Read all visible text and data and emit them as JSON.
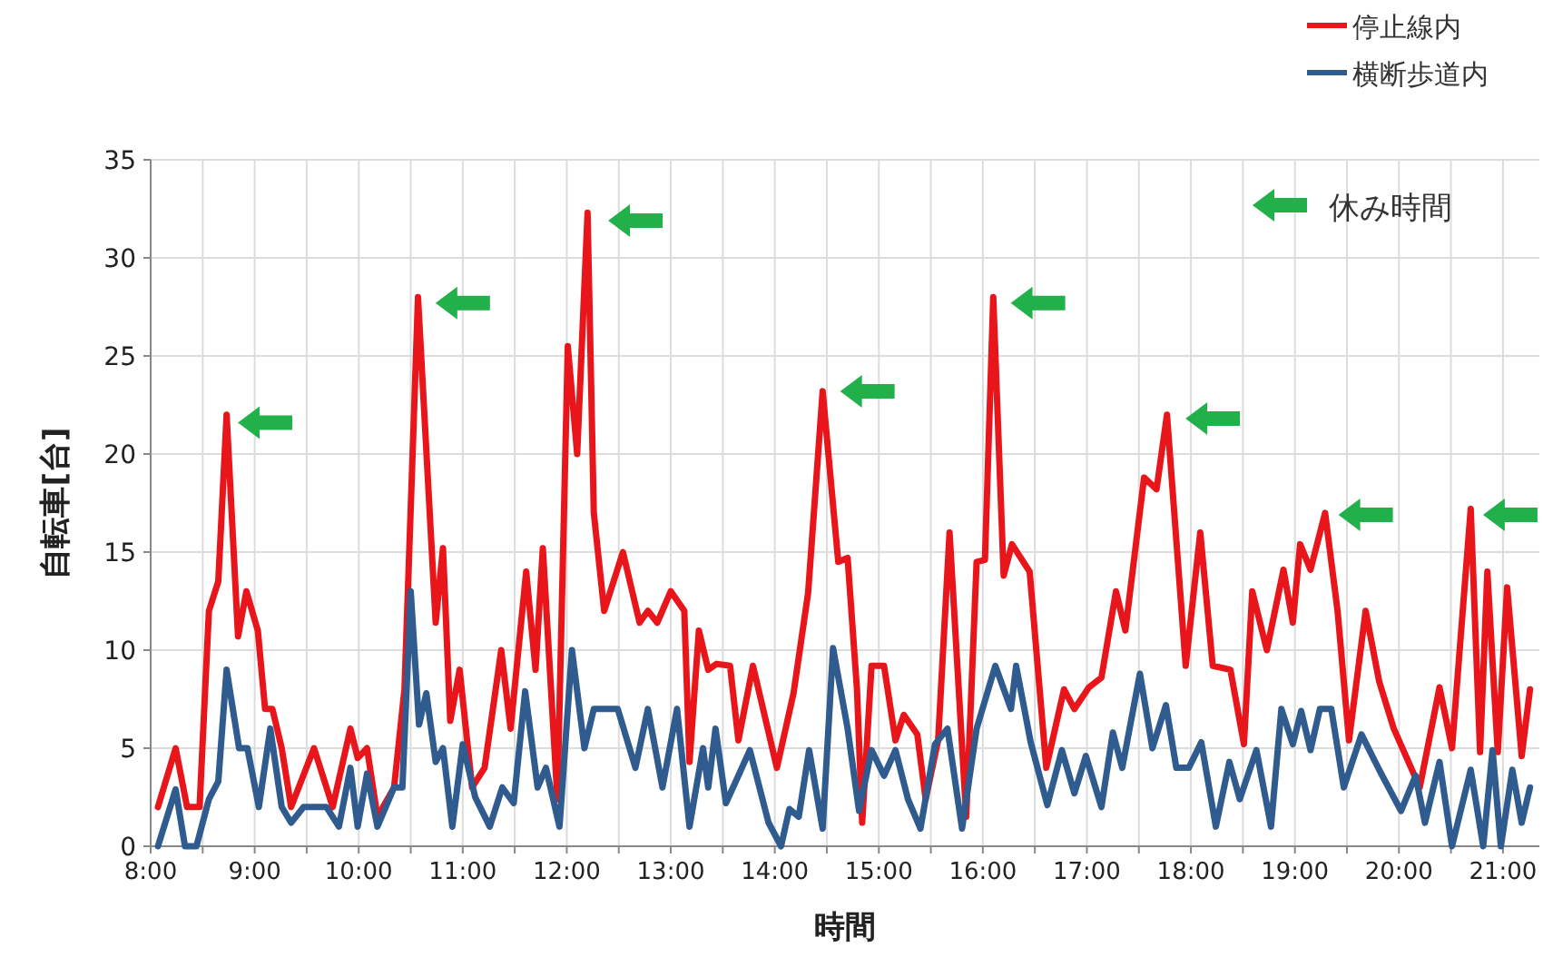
{
  "chart_data": {
    "type": "line",
    "xlabel": "時間",
    "ylabel": "自転車[台]",
    "xlim": [
      8,
      21.35
    ],
    "ylim": [
      0,
      35
    ],
    "xticks": [
      {
        "value": 8,
        "label": "8:00"
      },
      {
        "value": 8.5,
        "label": null
      },
      {
        "value": 9,
        "label": "9:00"
      },
      {
        "value": 9.5,
        "label": null
      },
      {
        "value": 10,
        "label": "10:00"
      },
      {
        "value": 10.5,
        "label": null
      },
      {
        "value": 11,
        "label": "11:00"
      },
      {
        "value": 11.5,
        "label": null
      },
      {
        "value": 12,
        "label": "12:00"
      },
      {
        "value": 12.5,
        "label": null
      },
      {
        "value": 13,
        "label": "13:00"
      },
      {
        "value": 13.5,
        "label": null
      },
      {
        "value": 14,
        "label": "14:00"
      },
      {
        "value": 14.5,
        "label": null
      },
      {
        "value": 15,
        "label": "15:00"
      },
      {
        "value": 15.5,
        "label": null
      },
      {
        "value": 16,
        "label": "16:00"
      },
      {
        "value": 16.5,
        "label": null
      },
      {
        "value": 17,
        "label": "17:00"
      },
      {
        "value": 17.5,
        "label": null
      },
      {
        "value": 18,
        "label": "18:00"
      },
      {
        "value": 18.5,
        "label": null
      },
      {
        "value": 19,
        "label": "19:00"
      },
      {
        "value": 19.5,
        "label": null
      },
      {
        "value": 20,
        "label": "20:00"
      },
      {
        "value": 20.5,
        "label": null
      },
      {
        "value": 21,
        "label": "21:00"
      }
    ],
    "yticks": [
      0,
      5,
      10,
      15,
      20,
      25,
      30,
      35
    ],
    "grid": true,
    "legend": "top right",
    "line_style": "solid",
    "series": [
      {
        "name": "停止線内",
        "color": "#e8161b",
        "x": [
          8.07,
          8.24,
          8.35,
          8.47,
          8.56,
          8.65,
          8.73,
          8.84,
          8.92,
          9.03,
          9.1,
          9.17,
          9.26,
          9.35,
          9.57,
          9.75,
          9.92,
          9.99,
          10.08,
          10.18,
          10.34,
          10.44,
          10.57,
          10.74,
          10.81,
          10.88,
          10.97,
          11.09,
          11.21,
          11.37,
          11.46,
          11.61,
          11.7,
          11.77,
          11.91,
          12.01,
          12.1,
          12.2,
          12.26,
          12.36,
          12.54,
          12.7,
          12.78,
          12.87,
          13.0,
          13.13,
          13.18,
          13.27,
          13.36,
          13.44,
          13.57,
          13.65,
          13.79,
          14.02,
          14.18,
          14.32,
          14.46,
          14.61,
          14.7,
          14.79,
          14.84,
          14.93,
          15.05,
          15.16,
          15.24,
          15.37,
          15.45,
          15.57,
          15.68,
          15.84,
          15.94,
          16.02,
          16.1,
          16.2,
          16.28,
          16.45,
          16.61,
          16.78,
          16.88,
          17.02,
          17.14,
          17.28,
          17.37,
          17.55,
          17.67,
          17.77,
          17.95,
          18.09,
          18.21,
          18.38,
          18.51,
          18.59,
          18.73,
          18.89,
          18.98,
          19.05,
          19.15,
          19.29,
          19.41,
          19.52,
          19.68,
          19.81,
          19.95,
          20.2,
          20.39,
          20.51,
          20.69,
          20.78,
          20.85,
          20.95,
          21.04,
          21.18,
          21.26
        ],
        "values": [
          2,
          5,
          2,
          2,
          12,
          13.5,
          22,
          10.7,
          13,
          11,
          7,
          7,
          5,
          2,
          5,
          2,
          6,
          4.5,
          5,
          1.5,
          3,
          8,
          28,
          11.4,
          15.2,
          6.4,
          9,
          3,
          4,
          10,
          6,
          14,
          9,
          15.2,
          2.4,
          25.5,
          20,
          32.3,
          17,
          12,
          15,
          11.4,
          12,
          11.4,
          13,
          12,
          4.3,
          11,
          9,
          9.3,
          9.2,
          5.4,
          9.2,
          4,
          7.8,
          12.9,
          23.2,
          14.5,
          14.7,
          8,
          1.2,
          9.2,
          9.2,
          5.4,
          6.7,
          5.7,
          2.4,
          5.4,
          16,
          1.5,
          14.5,
          14.6,
          28,
          13.8,
          15.4,
          14,
          4,
          8,
          7,
          8.1,
          8.6,
          13,
          11,
          18.8,
          18.2,
          22,
          9.2,
          16,
          9.2,
          9,
          5.2,
          13,
          10,
          14.1,
          11.4,
          15.4,
          14.1,
          17,
          12,
          5.4,
          12,
          8.4,
          6,
          3,
          8.1,
          5,
          17.2,
          4.8,
          14,
          4.8,
          13.2,
          4.6,
          8
        ]
      },
      {
        "name": "横断歩道内",
        "color": "#2f5b8f",
        "x": [
          8.07,
          8.24,
          8.33,
          8.44,
          8.56,
          8.65,
          8.73,
          8.85,
          8.93,
          9.04,
          9.15,
          9.26,
          9.35,
          9.47,
          9.69,
          9.81,
          9.92,
          9.99,
          10.08,
          10.18,
          10.34,
          10.42,
          10.5,
          10.58,
          10.65,
          10.74,
          10.81,
          10.9,
          11.0,
          11.12,
          11.26,
          11.38,
          11.49,
          11.6,
          11.72,
          11.8,
          11.93,
          12.05,
          12.17,
          12.26,
          12.36,
          12.49,
          12.66,
          12.78,
          12.92,
          13.06,
          13.18,
          13.31,
          13.36,
          13.43,
          13.53,
          13.65,
          13.76,
          13.94,
          14.06,
          14.14,
          14.23,
          14.33,
          14.46,
          14.56,
          14.7,
          14.81,
          14.93,
          15.05,
          15.16,
          15.28,
          15.4,
          15.54,
          15.66,
          15.8,
          15.94,
          16.12,
          16.27,
          16.32,
          16.46,
          16.62,
          16.76,
          16.88,
          16.99,
          17.14,
          17.25,
          17.34,
          17.51,
          17.63,
          17.76,
          17.86,
          17.98,
          18.1,
          18.24,
          18.37,
          18.47,
          18.63,
          18.77,
          18.87,
          18.98,
          19.06,
          19.15,
          19.24,
          19.35,
          19.47,
          19.64,
          19.81,
          20.02,
          20.16,
          20.25,
          20.39,
          20.51,
          20.69,
          20.81,
          20.9,
          20.98,
          21.09,
          21.18,
          21.26
        ],
        "values": [
          0,
          2.9,
          0,
          0,
          2.4,
          3.3,
          9,
          5,
          5,
          2,
          6,
          2,
          1.2,
          2,
          2,
          1,
          4,
          1,
          3.7,
          1,
          3,
          3,
          13,
          6.2,
          7.8,
          4.3,
          5,
          1,
          5.2,
          2.5,
          1,
          3,
          2.2,
          7.9,
          3,
          4,
          1,
          10,
          5,
          7,
          7,
          7,
          4,
          7,
          3,
          7,
          1,
          5,
          3,
          6,
          2.2,
          3.6,
          4.9,
          1.2,
          0,
          1.9,
          1.5,
          4.9,
          0.9,
          10.1,
          6,
          1.8,
          4.9,
          3.6,
          4.9,
          2.4,
          0.9,
          5.2,
          6,
          0.9,
          6,
          9.2,
          7,
          9.2,
          5.3,
          2.1,
          4.9,
          2.7,
          4.6,
          2,
          5.8,
          4,
          8.8,
          5,
          7.2,
          4,
          4,
          5.3,
          1,
          4.3,
          2.4,
          4.9,
          1,
          7,
          5.2,
          6.9,
          4.9,
          7,
          7,
          3,
          5.7,
          3.9,
          1.8,
          3.6,
          1.2,
          4.3,
          0,
          3.9,
          0,
          4.9,
          0,
          3.9,
          1.2,
          3
        ]
      },
      {
        "name": "休み時間",
        "color": "#22b04b",
        "type": "scatter",
        "x": [
          9.1,
          11.0,
          12.66,
          14.89,
          16.53,
          18.21,
          19.68,
          21.07
        ],
        "values": [
          21.6,
          27.7,
          31.9,
          23.2,
          27.7,
          21.8,
          16.9,
          16.9
        ]
      }
    ]
  }
}
